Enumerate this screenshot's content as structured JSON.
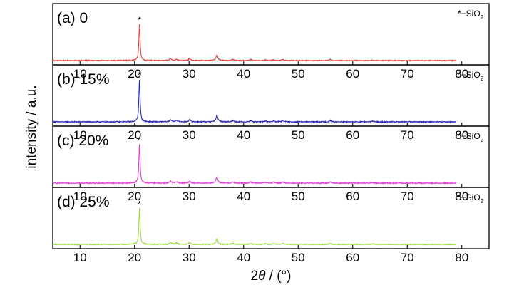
{
  "chart_data": {
    "type": "line",
    "x_range": [
      5,
      85
    ],
    "y_label": "intensity / a.u.",
    "x_label_parts": {
      "prefix": "2",
      "symbol": "θ",
      "suffix": " / (°)"
    },
    "x_ticks": [
      10,
      20,
      30,
      40,
      50,
      60,
      70,
      80
    ],
    "legend": {
      "marker": "*",
      "text": "−SiO",
      "subscript": "2"
    },
    "peak_marker": "*",
    "peaks_2theta": [
      {
        "x": 20.9,
        "relative_intensity": 1.0
      },
      {
        "x": 26.6,
        "relative_intensity": 0.05
      },
      {
        "x": 27.7,
        "relative_intensity": 0.04
      },
      {
        "x": 30.1,
        "relative_intensity": 0.05
      },
      {
        "x": 35.1,
        "relative_intensity": 0.16
      },
      {
        "x": 38.0,
        "relative_intensity": 0.03
      },
      {
        "x": 41.3,
        "relative_intensity": 0.03
      },
      {
        "x": 44.0,
        "relative_intensity": 0.02
      },
      {
        "x": 45.5,
        "relative_intensity": 0.02
      },
      {
        "x": 47.2,
        "relative_intensity": 0.03
      },
      {
        "x": 55.9,
        "relative_intensity": 0.03
      },
      {
        "x": 63.6,
        "relative_intensity": 0.015
      }
    ],
    "trace_x_range": [
      5,
      79
    ],
    "panels": [
      {
        "label": "(a) 0",
        "color": "#e8453c",
        "peak_height_fraction": 0.73
      },
      {
        "label": "(b) 15%",
        "color": "#2a2ab8",
        "peak_height_fraction": 0.85
      },
      {
        "label": "(c) 20%",
        "color": "#e040d0",
        "peak_height_fraction": 0.78
      },
      {
        "label": "(d) 25%",
        "color": "#a0d848",
        "peak_height_fraction": 0.72
      }
    ]
  }
}
